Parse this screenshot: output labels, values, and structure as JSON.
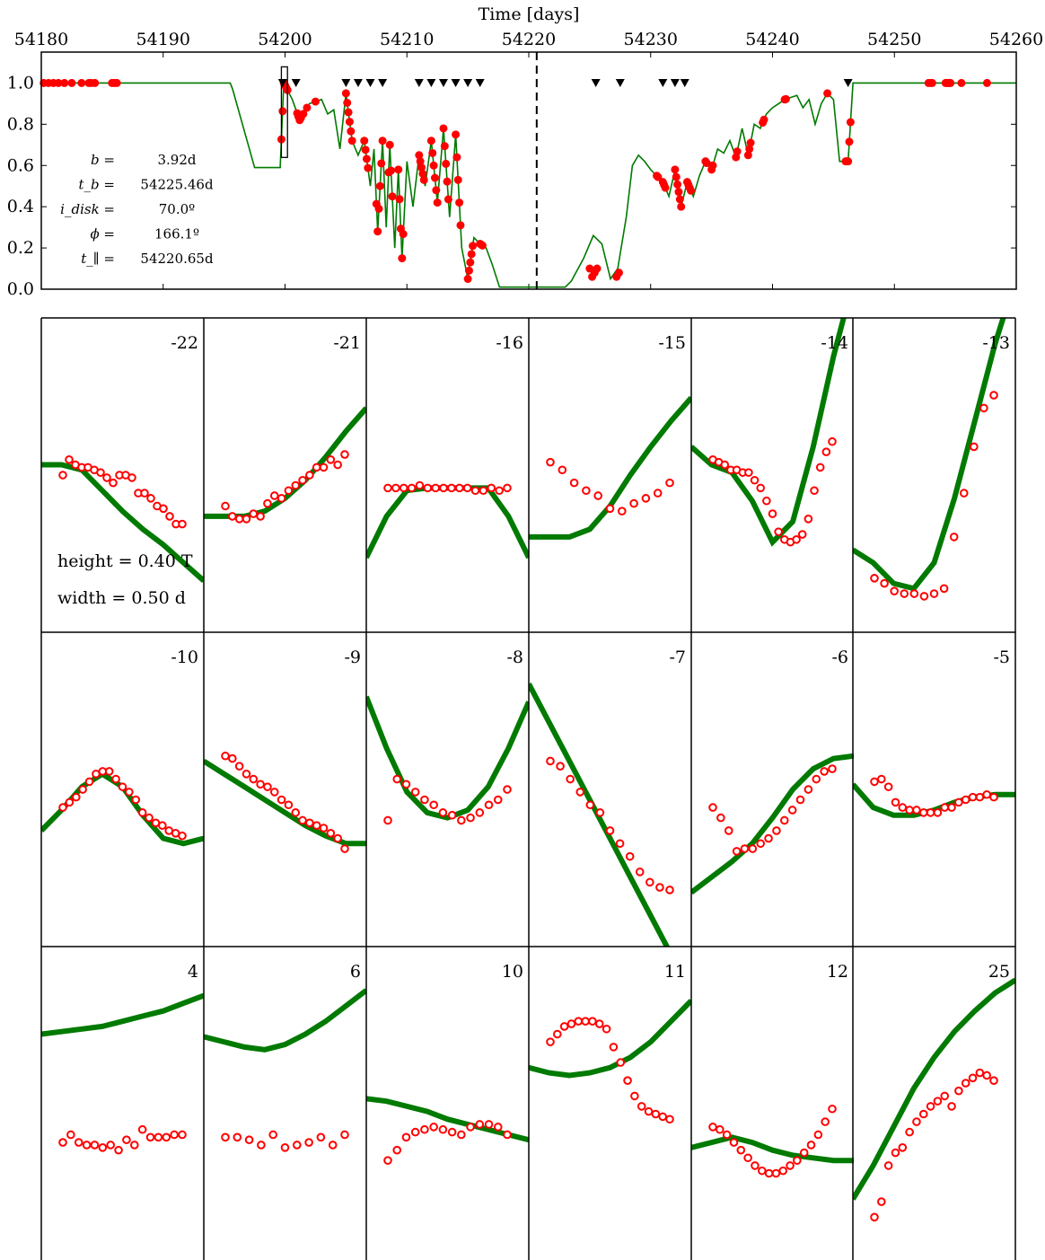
{
  "chart_data": [
    {
      "type": "scatter",
      "panel": "overview",
      "xlabel": "Time [days]",
      "ylabel": "",
      "xlim": [
        54180,
        54260
      ],
      "ylim": [
        0.0,
        1.15
      ],
      "xticks": [
        "54180",
        "54190",
        "54200",
        "54210",
        "54220",
        "54230",
        "54240",
        "54250",
        "54260"
      ],
      "yticks": [
        "0.0",
        "0.2",
        "0.4",
        "0.6",
        "0.8",
        "1.0"
      ],
      "colors": {
        "model": "#007a00",
        "data": "#ff0000",
        "markers": "#000000"
      },
      "vertical_line": 54220.65,
      "highlight_box": {
        "x": [
          54199.7,
          54200.2
        ],
        "y": [
          0.7,
          1.0
        ]
      },
      "triangle_markers_x": [
        54199.8,
        54200.9,
        54205.0,
        54206.0,
        54207.0,
        54208.0,
        54211.0,
        54212.0,
        54213.0,
        54214.0,
        54215.0,
        54216.0,
        54225.5,
        54227.5,
        54231.0,
        54232.0,
        54232.8,
        54246.2
      ],
      "annotations": [
        {
          "label": "b =",
          "value": "3.92d"
        },
        {
          "label": "t_b =",
          "value": "54225.46d"
        },
        {
          "label": "i_disk =",
          "value": "70.0º"
        },
        {
          "label": "ϕ =",
          "value": "166.1º"
        },
        {
          "label": "t_∥ =",
          "value": "54220.65d"
        }
      ],
      "model": {
        "x": [
          54180,
          54195.5,
          54195.7,
          54197.5,
          54197.8,
          54199.6,
          54199.9,
          54200.6,
          54201.2,
          54202,
          54203,
          54203.5,
          54204,
          54204.5,
          54205,
          54205.5,
          54206,
          54206.5,
          54207,
          54207.3,
          54207.6,
          54208,
          54208.3,
          54208.6,
          54209,
          54209.3,
          54209.6,
          54210,
          54210.5,
          54211,
          54211.5,
          54212,
          54212.5,
          54213,
          54213.5,
          54214,
          54214.5,
          54215,
          54215.5,
          54216,
          54216.5,
          54217,
          54217.6,
          54218,
          54223,
          54223.5,
          54224.5,
          54225.3,
          54226,
          54226.7,
          54227.3,
          54228,
          54228.5,
          54229,
          54229.5,
          54230,
          54231,
          54231.5,
          54232,
          54232.5,
          54233,
          54233.5,
          54234,
          54234.5,
          54235,
          54235.5,
          54236,
          54236.5,
          54237,
          54237.5,
          54238,
          54238.5,
          54239,
          54239.5,
          54240,
          54240.5,
          54241,
          54242,
          54242.5,
          54243,
          54243.5,
          54244,
          54244.5,
          54245,
          54245.5,
          54246.2,
          54246.6,
          54260
        ],
        "y": [
          1.0,
          1.0,
          0.97,
          0.59,
          0.59,
          0.59,
          1.0,
          0.92,
          0.82,
          0.9,
          0.92,
          0.85,
          0.87,
          0.68,
          0.95,
          0.72,
          0.65,
          0.72,
          0.5,
          0.68,
          0.28,
          0.72,
          0.3,
          0.7,
          0.2,
          0.58,
          0.15,
          0.62,
          0.4,
          0.65,
          0.5,
          0.72,
          0.42,
          0.78,
          0.35,
          0.75,
          0.2,
          0.05,
          0.25,
          0.22,
          0.2,
          0.12,
          0.01,
          0.01,
          0.01,
          0.04,
          0.15,
          0.26,
          0.22,
          0.05,
          0.1,
          0.35,
          0.6,
          0.65,
          0.62,
          0.58,
          0.52,
          0.45,
          0.58,
          0.4,
          0.52,
          0.45,
          0.55,
          0.62,
          0.58,
          0.68,
          0.66,
          0.72,
          0.64,
          0.78,
          0.65,
          0.8,
          0.78,
          0.85,
          0.88,
          0.9,
          0.92,
          0.94,
          0.88,
          0.92,
          0.8,
          0.9,
          0.95,
          0.92,
          0.62,
          0.62,
          1.0,
          1.0
        ]
      },
      "data": {
        "x": [
          54180.2,
          54180.6,
          54181.0,
          54181.4,
          54181.9,
          54182.5,
          54183.3,
          54183.9,
          54184.1,
          54184.4,
          54185.8,
          54186.0,
          54186.2,
          54199.7,
          54199.8,
          54199.9,
          54200.0,
          54200.1,
          54200.2,
          54201.0,
          54201.1,
          54201.2,
          54201.3,
          54201.5,
          54201.8,
          54202.5,
          54205.0,
          54205.1,
          54205.2,
          54205.3,
          54205.4,
          54205.5,
          54206.5,
          54206.6,
          54206.7,
          54206.8,
          54207.5,
          54207.6,
          54207.7,
          54207.8,
          54207.9,
          54208.0,
          54208.5,
          54208.6,
          54208.7,
          54208.8,
          54209.3,
          54209.4,
          54209.5,
          54209.6,
          54209.7,
          54211.0,
          54211.1,
          54211.2,
          54211.3,
          54211.4,
          54212.0,
          54212.1,
          54212.2,
          54212.3,
          54212.4,
          54212.5,
          54213.0,
          54213.1,
          54213.2,
          54213.3,
          54213.4,
          54214.0,
          54214.1,
          54214.2,
          54214.3,
          54214.4,
          54215.0,
          54215.1,
          54215.2,
          54215.3,
          54215.4,
          54216.0,
          54216.1,
          54216.2,
          54225.0,
          54225.2,
          54225.4,
          54225.6,
          54227.2,
          54227.4,
          54230.5,
          54230.6,
          54231.0,
          54231.1,
          54231.2,
          54232.0,
          54232.1,
          54232.2,
          54232.3,
          54232.4,
          54232.5,
          54233.0,
          54233.1,
          54233.2,
          54233.3,
          54234.5,
          54234.6,
          54235.0,
          54235.1,
          54237.0,
          54237.1,
          54238.0,
          54238.1,
          54238.2,
          54239.2,
          54239.3,
          54241.0,
          54241.1,
          54244.5,
          54246.0,
          54246.1,
          54246.2,
          54246.3,
          54246.4,
          54252.8,
          54253.0,
          54253.1,
          54254.2,
          54254.3,
          54254.4,
          54254.5,
          54254.6,
          54255.5,
          54257.6
        ]
      }
    },
    {
      "type": "scatter",
      "panel": "zoom-grid",
      "height": "height = 0.40 T",
      "width": "width = 0.50 d",
      "panels": [
        {
          "label": "-22",
          "model": [
            0.58,
            0.58,
            0.56,
            0.48,
            0.4,
            0.33,
            0.27,
            0.2,
            0.13
          ],
          "data": [
            0.54,
            0.6,
            0.58,
            0.57,
            0.57,
            0.56,
            0.55,
            0.53,
            0.51,
            0.54,
            0.54,
            0.53,
            0.47,
            0.47,
            0.45,
            0.42,
            0.41,
            0.38,
            0.35,
            0.35
          ]
        },
        {
          "label": "-21",
          "model": [
            0.38,
            0.38,
            0.38,
            0.4,
            0.45,
            0.52,
            0.61,
            0.71,
            0.8
          ],
          "data": [
            0.42,
            0.38,
            0.37,
            0.37,
            0.39,
            0.38,
            0.43,
            0.46,
            0.45,
            0.48,
            0.5,
            0.52,
            0.54,
            0.57,
            0.57,
            0.6,
            0.58,
            0.62
          ]
        },
        {
          "label": "-16",
          "model": [
            0.22,
            0.38,
            0.48,
            0.49,
            0.49,
            0.49,
            0.49,
            0.38,
            0.22
          ],
          "data": [
            0.49,
            0.49,
            0.49,
            0.49,
            0.5,
            0.49,
            0.49,
            0.49,
            0.49,
            0.49,
            0.49,
            0.48,
            0.48,
            0.49,
            0.48,
            0.49
          ]
        },
        {
          "label": "-15",
          "model": [
            0.3,
            0.3,
            0.3,
            0.33,
            0.42,
            0.54,
            0.65,
            0.75,
            0.84
          ],
          "data": [
            0.59,
            0.56,
            0.51,
            0.48,
            0.46,
            0.41,
            0.4,
            0.43,
            0.45,
            0.47,
            0.51
          ]
        },
        {
          "label": "-14",
          "model": [
            0.65,
            0.58,
            0.55,
            0.44,
            0.28,
            0.36,
            0.65,
            1.0,
            1.3
          ],
          "data": [
            0.6,
            0.59,
            0.58,
            0.56,
            0.56,
            0.55,
            0.55,
            0.52,
            0.49,
            0.44,
            0.39,
            0.32,
            0.29,
            0.28,
            0.29,
            0.31,
            0.37,
            0.48,
            0.57,
            0.63,
            0.67
          ]
        },
        {
          "label": "-13",
          "model": [
            0.25,
            0.2,
            0.12,
            0.1,
            0.2,
            0.45,
            0.75,
            1.05,
            1.3
          ],
          "data": [
            0.14,
            0.12,
            0.09,
            0.08,
            0.08,
            0.07,
            0.08,
            0.1,
            0.3,
            0.47,
            0.65,
            0.8,
            0.85
          ]
        },
        {
          "label": "-10",
          "model": [
            0.38,
            0.46,
            0.55,
            0.6,
            0.55,
            0.44,
            0.35,
            0.33,
            0.35
          ],
          "data": [
            0.47,
            0.49,
            0.51,
            0.54,
            0.57,
            0.6,
            0.61,
            0.61,
            0.58,
            0.55,
            0.53,
            0.5,
            0.45,
            0.43,
            0.41,
            0.4,
            0.38,
            0.37,
            0.36
          ]
        },
        {
          "label": "-9",
          "model": [
            0.65,
            0.6,
            0.55,
            0.5,
            0.45,
            0.4,
            0.36,
            0.33,
            0.33
          ],
          "data": [
            0.67,
            0.66,
            0.63,
            0.6,
            0.58,
            0.56,
            0.55,
            0.53,
            0.5,
            0.48,
            0.45,
            0.42,
            0.41,
            0.4,
            0.39,
            0.37,
            0.35,
            0.31
          ]
        },
        {
          "label": "-8",
          "model": [
            0.9,
            0.7,
            0.53,
            0.45,
            0.43,
            0.46,
            0.55,
            0.7,
            0.88
          ],
          "data": [
            0.42,
            0.58,
            0.56,
            0.53,
            0.5,
            0.48,
            0.45,
            0.44,
            0.42,
            0.43,
            0.45,
            0.48,
            0.5,
            0.54
          ]
        },
        {
          "label": "-7",
          "model": [
            0.95,
            0.8,
            0.65,
            0.5,
            0.35,
            0.2,
            0.05,
            -0.1,
            -0.2
          ],
          "data": [
            0.65,
            0.63,
            0.58,
            0.53,
            0.48,
            0.45,
            0.38,
            0.33,
            0.28,
            0.22,
            0.18,
            0.16,
            0.15
          ]
        },
        {
          "label": "-6",
          "model": [
            0.14,
            0.2,
            0.26,
            0.33,
            0.43,
            0.54,
            0.62,
            0.66,
            0.67
          ],
          "data": [
            0.47,
            0.43,
            0.38,
            0.3,
            0.31,
            0.31,
            0.33,
            0.35,
            0.38,
            0.42,
            0.46,
            0.5,
            0.54,
            0.58,
            0.61,
            0.62
          ]
        },
        {
          "label": "-5",
          "model": [
            0.56,
            0.47,
            0.44,
            0.44,
            0.46,
            0.49,
            0.51,
            0.52,
            0.52
          ],
          "data": [
            0.57,
            0.58,
            0.55,
            0.49,
            0.47,
            0.46,
            0.46,
            0.45,
            0.45,
            0.45,
            0.47,
            0.47,
            0.49,
            0.5,
            0.51,
            0.51,
            0.52,
            0.51
          ]
        },
        {
          "label": "4",
          "model": [
            0.81,
            0.82,
            0.83,
            0.84,
            0.86,
            0.88,
            0.9,
            0.93,
            0.96
          ],
          "data": [
            0.39,
            0.42,
            0.39,
            0.38,
            0.38,
            0.37,
            0.38,
            0.36,
            0.4,
            0.38,
            0.44,
            0.41,
            0.41,
            0.41,
            0.42,
            0.42
          ]
        },
        {
          "label": "6",
          "model": [
            0.8,
            0.78,
            0.76,
            0.75,
            0.77,
            0.81,
            0.86,
            0.92,
            0.98
          ],
          "data": [
            0.41,
            0.41,
            0.4,
            0.38,
            0.42,
            0.37,
            0.38,
            0.39,
            0.41,
            0.38,
            0.42
          ]
        },
        {
          "label": "10",
          "model": [
            0.56,
            0.55,
            0.53,
            0.51,
            0.48,
            0.46,
            0.44,
            0.42,
            0.4
          ],
          "data": [
            0.32,
            0.36,
            0.41,
            0.43,
            0.44,
            0.45,
            0.44,
            0.43,
            0.42,
            0.45,
            0.46,
            0.46,
            0.45,
            0.42
          ]
        },
        {
          "label": "11",
          "model": [
            0.68,
            0.66,
            0.65,
            0.66,
            0.68,
            0.72,
            0.78,
            0.86,
            0.94
          ],
          "data": [
            0.78,
            0.81,
            0.84,
            0.85,
            0.86,
            0.86,
            0.86,
            0.85,
            0.83,
            0.76,
            0.7,
            0.63,
            0.57,
            0.53,
            0.51,
            0.5,
            0.49,
            0.48
          ]
        },
        {
          "label": "12",
          "model": [
            0.37,
            0.39,
            0.41,
            0.39,
            0.36,
            0.34,
            0.33,
            0.32,
            0.32
          ],
          "data": [
            0.45,
            0.44,
            0.42,
            0.39,
            0.36,
            0.33,
            0.3,
            0.28,
            0.27,
            0.27,
            0.28,
            0.3,
            0.32,
            0.35,
            0.38,
            0.42,
            0.47,
            0.52
          ]
        },
        {
          "label": "25",
          "model": [
            0.17,
            0.3,
            0.45,
            0.6,
            0.72,
            0.82,
            0.9,
            0.97,
            1.02
          ],
          "data": [
            0.1,
            0.16,
            0.3,
            0.35,
            0.37,
            0.43,
            0.47,
            0.5,
            0.53,
            0.55,
            0.57,
            0.53,
            0.59,
            0.62,
            0.64,
            0.66,
            0.65,
            0.63
          ]
        }
      ]
    }
  ]
}
